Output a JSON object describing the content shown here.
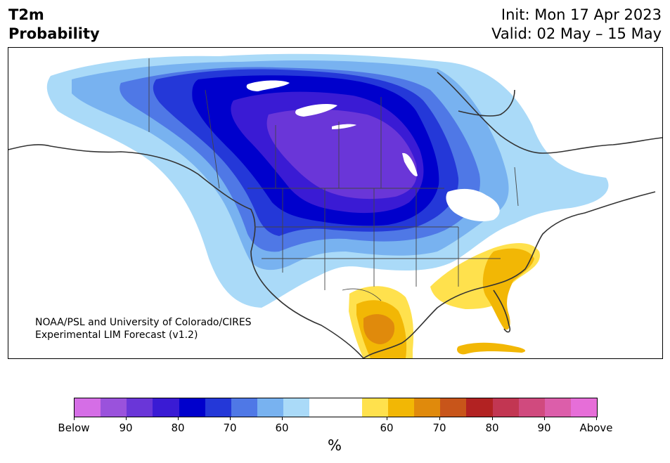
{
  "title": {
    "line1": "T2m",
    "line2": "Probability",
    "init": "Init: Mon 17 Apr 2023",
    "valid": "Valid: 02 May – 15 May"
  },
  "credit": {
    "line1": "NOAA/PSL and University of Colorado/CIRES",
    "line2": "Experimental LIM Forecast (v1.2)"
  },
  "colorbar": {
    "colors": [
      "#d56ee6",
      "#9a52dc",
      "#6a36d8",
      "#3a1bd4",
      "#0000cc",
      "#2438d8",
      "#4f78e6",
      "#78b2f0",
      "#aadaf8",
      "#ffffff",
      "#ffffff",
      "#ffe14d",
      "#f2b705",
      "#e08a0c",
      "#c8551a",
      "#b22222",
      "#c23652",
      "#d04a7e",
      "#dc5eaa",
      "#e66ed8"
    ],
    "tick_labels": [
      "Below",
      "90",
      "80",
      "70",
      "60",
      "60",
      "70",
      "80",
      "90",
      "Above"
    ],
    "unit": "%"
  },
  "map": {
    "region": "North America",
    "below_normal_core": "Northern Plains / Prairies",
    "above_normal": [
      "Southeast US",
      "Florida",
      "Northern Mexico",
      "Cuba"
    ]
  }
}
